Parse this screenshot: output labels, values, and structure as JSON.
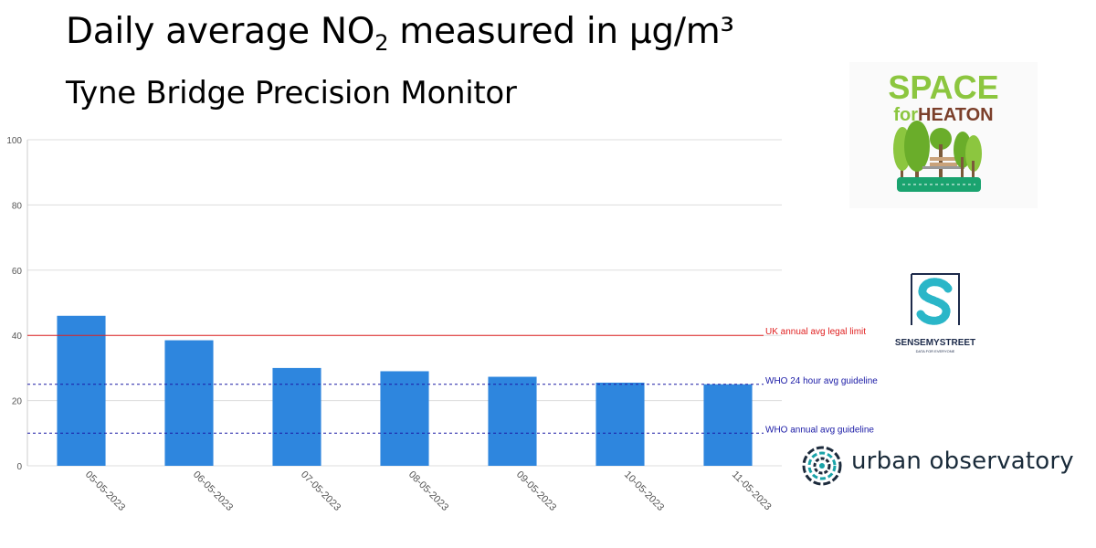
{
  "header": {
    "title_main": "Daily average NO",
    "title_sub": "2",
    "title_rest": " measured in µg/m³",
    "subtitle": "Tyne Bridge Precision Monitor"
  },
  "chart_data": {
    "type": "bar",
    "categories": [
      "05-05-2023",
      "06-05-2023",
      "07-05-2023",
      "08-05-2023",
      "09-05-2023",
      "10-05-2023",
      "11-05-2023"
    ],
    "values": [
      46,
      38.5,
      30,
      29,
      27.3,
      25.5,
      25
    ],
    "ylim": [
      0,
      100
    ],
    "yticks": [
      0,
      20,
      40,
      60,
      80,
      100
    ],
    "grid": true,
    "bar_color": "#2e86de",
    "reference_lines": [
      {
        "label": "UK annual avg legal limit",
        "value": 40,
        "color": "#e02020",
        "style": "solid"
      },
      {
        "label": "WHO 24 hour avg guideline",
        "value": 25,
        "color": "#1a1aa6",
        "style": "dashed"
      },
      {
        "label": "WHO annual avg guideline",
        "value": 10,
        "color": "#1a1aa6",
        "style": "dashed"
      }
    ]
  },
  "logos": {
    "space_for_heaton": {
      "line1": "SPACE",
      "line2_a": "for",
      "line2_b": "HEATON",
      "colors": {
        "green": "#8cc63f",
        "brown": "#7b3f2a",
        "teal": "#1aa36f"
      }
    },
    "sense_my_street": {
      "name": "SENSEMYSTREET",
      "tagline": "DATA FOR EVERYONE",
      "colors": {
        "dark": "#1c2a4a",
        "teal": "#2ab6c8"
      }
    },
    "urban_observatory": {
      "name": "urban observatory",
      "colors": {
        "dark": "#1c2b3c",
        "teal": "#1aa3a8"
      }
    }
  }
}
